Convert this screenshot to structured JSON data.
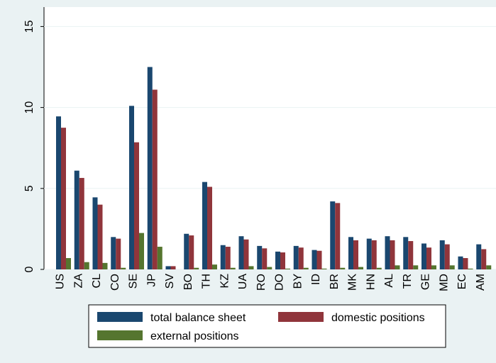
{
  "chart_data": {
    "type": "bar",
    "categories": [
      "US",
      "ZA",
      "CL",
      "CO",
      "SE",
      "JP",
      "SV",
      "BO",
      "TH",
      "KZ",
      "UA",
      "RO",
      "DO",
      "BY",
      "ID",
      "BR",
      "MK",
      "HN",
      "AL",
      "TR",
      "GE",
      "MD",
      "EC",
      "AM"
    ],
    "series": [
      {
        "name": "total balance sheet",
        "color": "#1a476f",
        "values": [
          9.45,
          6.1,
          4.45,
          2.0,
          10.1,
          12.5,
          0.2,
          2.2,
          5.4,
          1.5,
          2.05,
          1.45,
          1.1,
          1.45,
          1.2,
          4.2,
          2.0,
          1.9,
          2.05,
          2.0,
          1.6,
          1.8,
          0.8,
          1.55
        ]
      },
      {
        "name": "domestic positions",
        "color": "#90353b",
        "values": [
          8.75,
          5.65,
          4.0,
          1.9,
          7.85,
          11.1,
          0.2,
          2.1,
          5.1,
          1.4,
          1.85,
          1.3,
          1.05,
          1.35,
          1.15,
          4.1,
          1.8,
          1.8,
          1.8,
          1.75,
          1.35,
          1.55,
          0.7,
          1.25
        ]
      },
      {
        "name": "external positions",
        "color": "#55752f",
        "values": [
          0.7,
          0.45,
          0.4,
          0.1,
          2.25,
          1.4,
          0.0,
          0.1,
          0.3,
          0.1,
          0.2,
          0.15,
          0.05,
          0.1,
          0.05,
          0.1,
          0.15,
          0.1,
          0.25,
          0.25,
          0.25,
          0.25,
          0.05,
          0.25
        ]
      }
    ],
    "ylim": [
      0,
      16.2
    ],
    "yticks": [
      0,
      5,
      10,
      15
    ],
    "grid": true
  }
}
